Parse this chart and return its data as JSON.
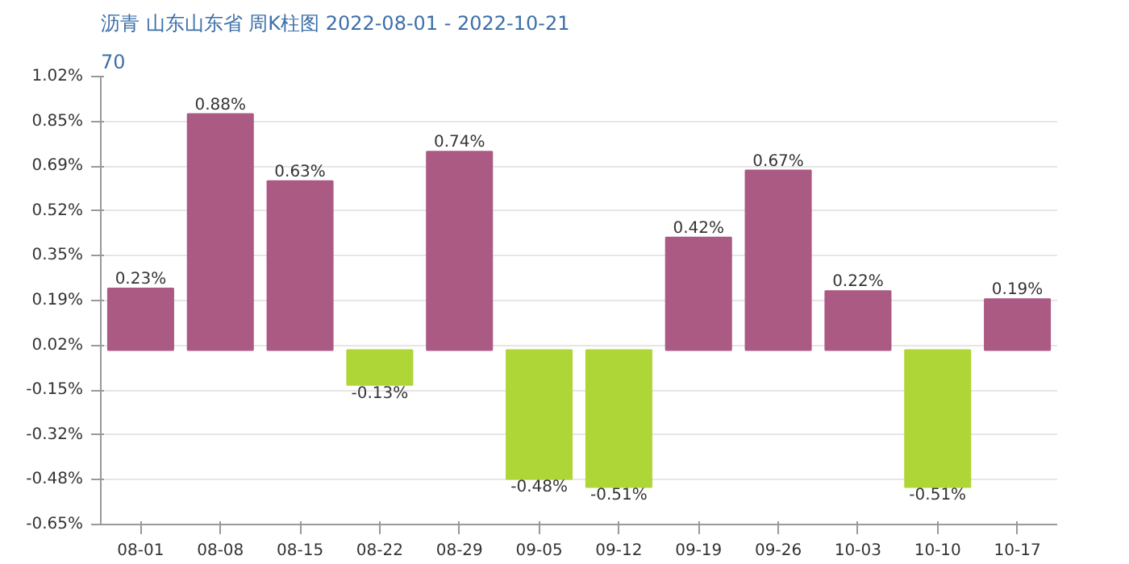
{
  "chart_data": {
    "type": "bar",
    "title": "沥青 山东山东省 周K柱图 2022-08-01 - 2022-10-21",
    "subtitle": "70",
    "categories": [
      "08-01",
      "08-08",
      "08-15",
      "08-22",
      "08-29",
      "09-05",
      "09-12",
      "09-19",
      "09-26",
      "10-03",
      "10-10",
      "10-17"
    ],
    "values": [
      0.23,
      0.88,
      0.63,
      -0.13,
      0.74,
      -0.48,
      -0.51,
      0.42,
      0.67,
      0.22,
      -0.51,
      0.19
    ],
    "value_labels": [
      "0.23%",
      "0.88%",
      "0.63%",
      "-0.13%",
      "0.74%",
      "-0.48%",
      "-0.51%",
      "0.42%",
      "0.67%",
      "0.22%",
      "-0.51%",
      "0.19%"
    ],
    "colors": [
      "#ab5a84",
      "#ab5a84",
      "#ab5a84",
      "#aed637",
      "#ab5a84",
      "#aed637",
      "#aed637",
      "#ab5a84",
      "#ab5a84",
      "#ab5a84",
      "#aed637",
      "#ab5a84"
    ],
    "ylim": [
      -0.65,
      1.02
    ],
    "yticks": [
      {
        "value": -0.65,
        "label": "-0.65%"
      },
      {
        "value": -0.483,
        "label": "-0.48%"
      },
      {
        "value": -0.316,
        "label": "-0.32%"
      },
      {
        "value": -0.149,
        "label": "-0.15%"
      },
      {
        "value": 0.018,
        "label": "0.02%"
      },
      {
        "value": 0.185,
        "label": "0.19%"
      },
      {
        "value": 0.352,
        "label": "0.35%"
      },
      {
        "value": 0.519,
        "label": "0.52%"
      },
      {
        "value": 0.686,
        "label": "0.69%"
      },
      {
        "value": 0.853,
        "label": "0.85%"
      },
      {
        "value": 1.02,
        "label": "1.02%"
      }
    ],
    "grid": "y"
  }
}
